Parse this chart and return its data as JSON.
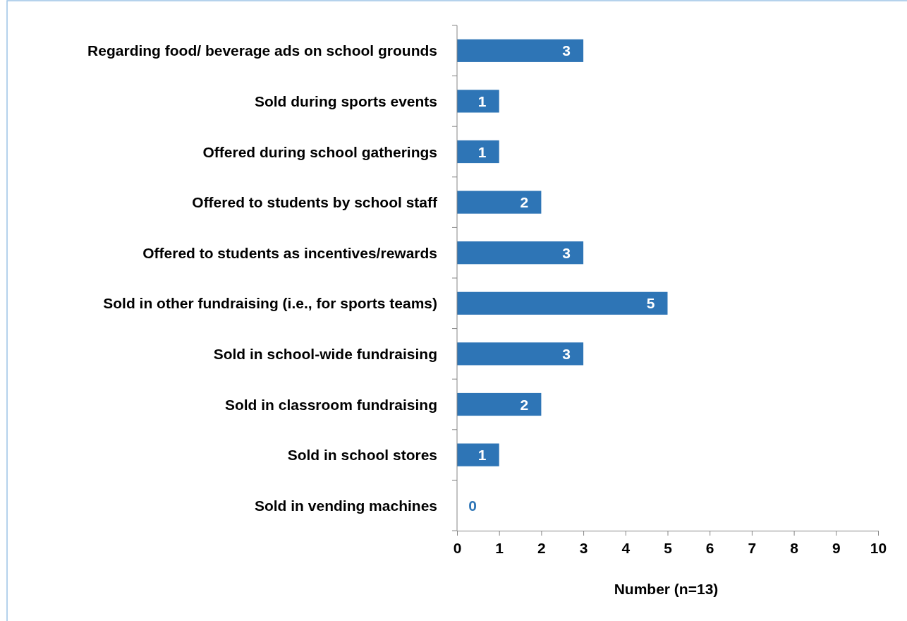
{
  "chart_data": {
    "type": "bar",
    "orientation": "horizontal",
    "xlabel": "Number (n=13)",
    "categories": [
      "Regarding food/ beverage ads on school grounds",
      "Sold during sports events",
      "Offered during school gatherings",
      "Offered to students by school staff",
      "Offered to students as incentives/rewards",
      "Sold in other fundraising (i.e., for sports teams)",
      "Sold in school-wide fundraising",
      "Sold in classroom fundraising",
      "Sold in school stores",
      "Sold in vending machines"
    ],
    "values": [
      3,
      1,
      1,
      2,
      3,
      5,
      3,
      2,
      1,
      0
    ],
    "color": "#2e75b6",
    "xlim": [
      0,
      10
    ],
    "xticks": [
      0,
      1,
      2,
      3,
      4,
      5,
      6,
      7,
      8,
      9,
      10
    ],
    "data_labels": true
  }
}
